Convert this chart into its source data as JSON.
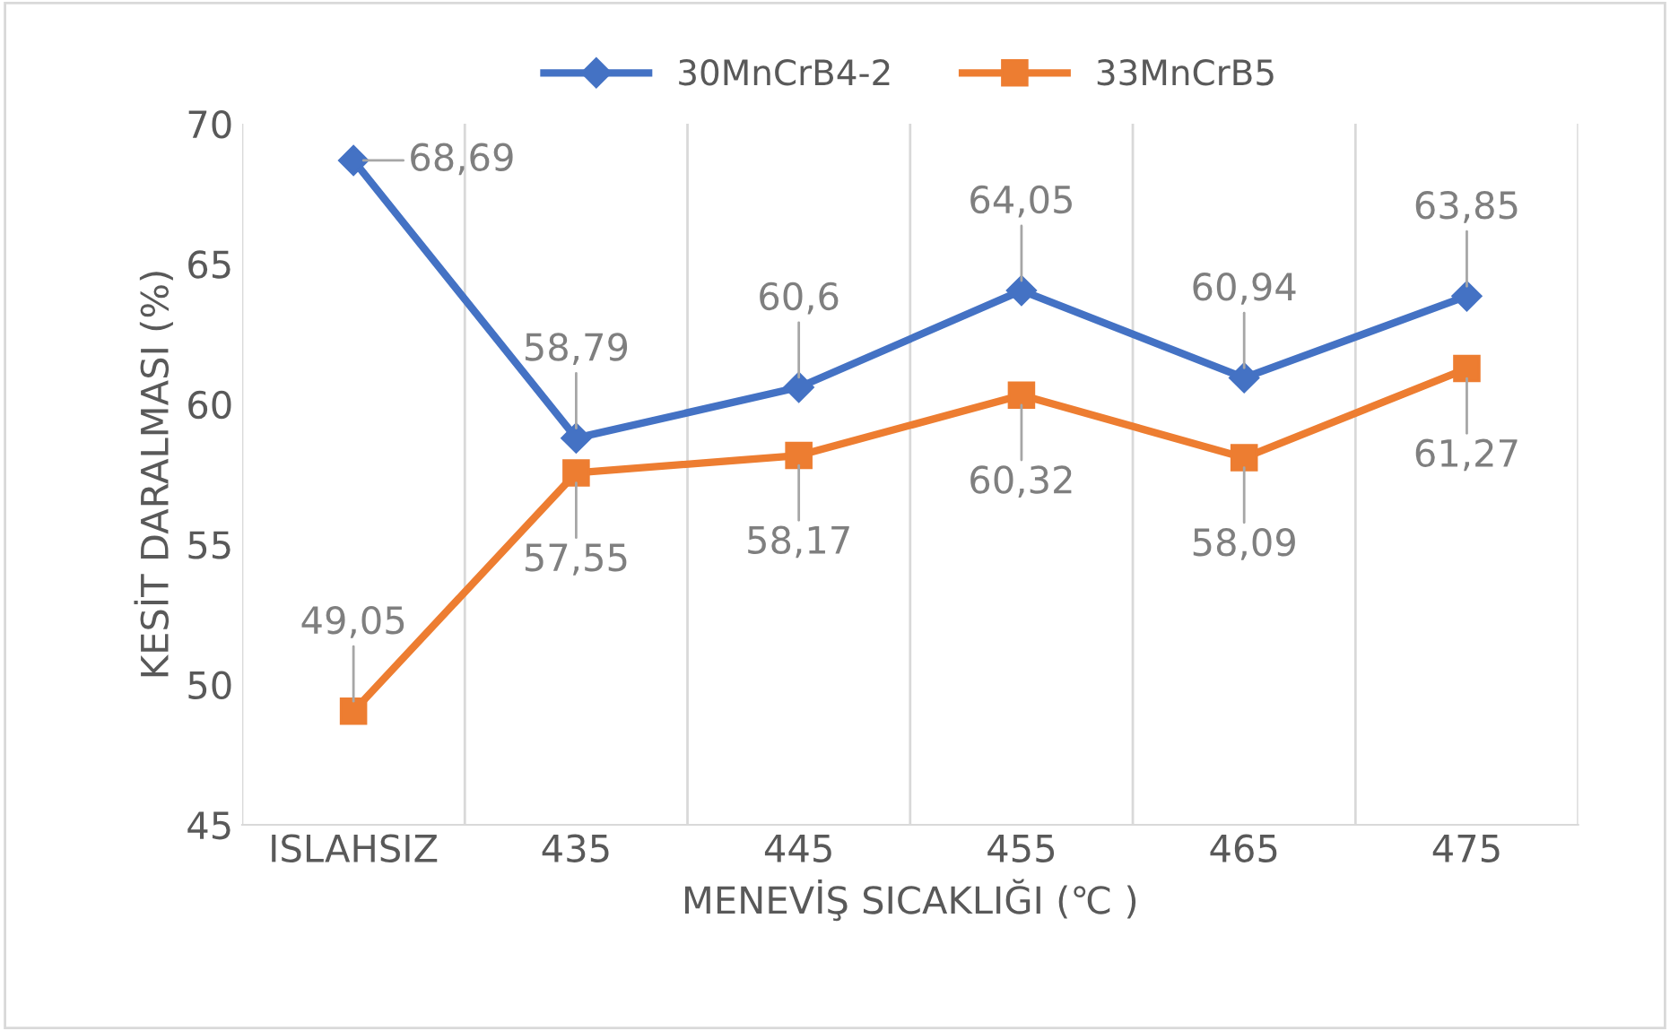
{
  "chart_data": {
    "type": "line",
    "xlabel": "MENEVİŞ SICAKLIĞI (℃ )",
    "ylabel": "KESİT DARALMASI (%)",
    "categories": [
      "ISLAHSIZ",
      "435",
      "445",
      "455",
      "465",
      "475"
    ],
    "series": [
      {
        "name": "30MnCrB4-2",
        "color": "#4472c4",
        "marker": "diamond",
        "values": [
          68.69,
          58.79,
          60.6,
          64.05,
          60.94,
          63.85
        ],
        "value_labels": [
          "68,69",
          "58,79",
          "60,6",
          "64,05",
          "60,94",
          "63,85"
        ]
      },
      {
        "name": "33MnCrB5",
        "color": "#ed7d31",
        "marker": "square",
        "values": [
          49.05,
          57.55,
          58.17,
          60.32,
          58.09,
          61.27
        ],
        "value_labels": [
          "49,05",
          "57,55",
          "58,17",
          "60,32",
          "58,09",
          "61,27"
        ]
      }
    ],
    "ylim": [
      45,
      70
    ],
    "yticks": [
      45,
      50,
      55,
      60,
      65,
      70
    ],
    "grid": "x",
    "legend": "top",
    "line_style": "solid"
  }
}
